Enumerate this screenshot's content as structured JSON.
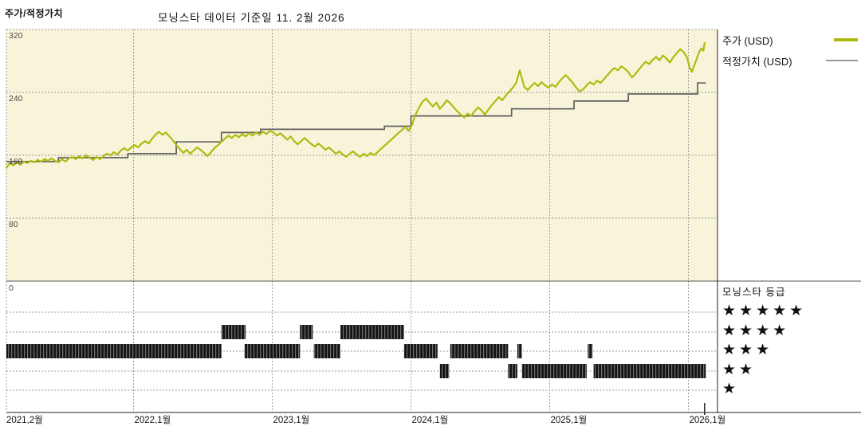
{
  "header": {
    "title": "주가/적정가치"
  },
  "chart_title": "모닝스타 데이터 기준일 11. 2월 2026",
  "legend": {
    "items": [
      {
        "label": "주가 (USD)",
        "color": "#afba10"
      },
      {
        "label": "적정가치 (USD)",
        "color": "#9a9a9a"
      }
    ]
  },
  "rating_panel": {
    "title": "모닝스타 등급",
    "star_glyph": "★",
    "levels": [
      5,
      4,
      3,
      2,
      1
    ]
  },
  "colors": {
    "plot_bg": "#f8f4d9",
    "grid": "#9a9a9a",
    "axis": "#222222",
    "divider": "#555555",
    "price_line": "#afba10",
    "fair_value_line": "#5f5f5f",
    "rating_bar_dark": "#141414",
    "rating_bar_mid": "#6e6e6e"
  },
  "chart_data": {
    "type": "line",
    "title": "모닝스타 데이터 기준일 11. 2월 2026",
    "x_axis": {
      "labels": [
        "2021,2월",
        "2022,1월",
        "2023,1월",
        "2024,1월",
        "2025,1월",
        "2026,1월"
      ],
      "tick_months": [
        0,
        11,
        23,
        35,
        47,
        59
      ],
      "months_origin": "2021-02",
      "data_end_month": 60.4
    },
    "y_axis": {
      "ticks": [
        320,
        240,
        160,
        80,
        0
      ],
      "range": [
        0,
        320
      ],
      "unit": "USD"
    },
    "series": [
      {
        "name": "주가 (USD)",
        "type": "line",
        "color": "#afba10",
        "points": [
          [
            0,
            144
          ],
          [
            0.3,
            150
          ],
          [
            0.6,
            147
          ],
          [
            0.9,
            151
          ],
          [
            1.2,
            148
          ],
          [
            1.5,
            152
          ],
          [
            1.8,
            150
          ],
          [
            2.1,
            153
          ],
          [
            2.4,
            151
          ],
          [
            2.7,
            154
          ],
          [
            3,
            152
          ],
          [
            3.3,
            155
          ],
          [
            3.6,
            153
          ],
          [
            3.9,
            156
          ],
          [
            4.2,
            153
          ],
          [
            4.5,
            151
          ],
          [
            4.8,
            155
          ],
          [
            5.1,
            152
          ],
          [
            5.4,
            156
          ],
          [
            5.7,
            158
          ],
          [
            6,
            155
          ],
          [
            6.3,
            159
          ],
          [
            6.6,
            156
          ],
          [
            6.9,
            160
          ],
          [
            7.2,
            157
          ],
          [
            7.5,
            154
          ],
          [
            7.8,
            158
          ],
          [
            8.1,
            155
          ],
          [
            8.4,
            159
          ],
          [
            8.7,
            162
          ],
          [
            9,
            160
          ],
          [
            9.3,
            164
          ],
          [
            9.6,
            161
          ],
          [
            9.9,
            166
          ],
          [
            10.2,
            169
          ],
          [
            10.5,
            166
          ],
          [
            10.8,
            170
          ],
          [
            11.1,
            173
          ],
          [
            11.4,
            170
          ],
          [
            11.7,
            175
          ],
          [
            12,
            178
          ],
          [
            12.3,
            175
          ],
          [
            12.6,
            181
          ],
          [
            12.9,
            186
          ],
          [
            13.2,
            190
          ],
          [
            13.5,
            186
          ],
          [
            13.8,
            189
          ],
          [
            14.1,
            184
          ],
          [
            14.4,
            179
          ],
          [
            14.7,
            173
          ],
          [
            15,
            168
          ],
          [
            15.3,
            163
          ],
          [
            15.6,
            167
          ],
          [
            15.9,
            162
          ],
          [
            16.2,
            166
          ],
          [
            16.5,
            170
          ],
          [
            16.8,
            167
          ],
          [
            17.1,
            163
          ],
          [
            17.4,
            159
          ],
          [
            17.7,
            164
          ],
          [
            18,
            169
          ],
          [
            18.3,
            173
          ],
          [
            18.6,
            177
          ],
          [
            18.9,
            181
          ],
          [
            19.2,
            185
          ],
          [
            19.5,
            182
          ],
          [
            19.8,
            186
          ],
          [
            20.1,
            183
          ],
          [
            20.4,
            187
          ],
          [
            20.7,
            184
          ],
          [
            21,
            188
          ],
          [
            21.3,
            185
          ],
          [
            21.6,
            189
          ],
          [
            21.9,
            186
          ],
          [
            22.2,
            190
          ],
          [
            22.5,
            187
          ],
          [
            22.8,
            191
          ],
          [
            23.1,
            189
          ],
          [
            23.4,
            185
          ],
          [
            23.7,
            188
          ],
          [
            24,
            184
          ],
          [
            24.3,
            180
          ],
          [
            24.6,
            184
          ],
          [
            24.9,
            178
          ],
          [
            25.2,
            174
          ],
          [
            25.5,
            178
          ],
          [
            25.8,
            182
          ],
          [
            26.1,
            178
          ],
          [
            26.4,
            174
          ],
          [
            26.7,
            171
          ],
          [
            27,
            175
          ],
          [
            27.3,
            171
          ],
          [
            27.6,
            167
          ],
          [
            27.9,
            170
          ],
          [
            28.2,
            166
          ],
          [
            28.5,
            162
          ],
          [
            28.8,
            165
          ],
          [
            29.1,
            161
          ],
          [
            29.4,
            158
          ],
          [
            29.7,
            162
          ],
          [
            30,
            165
          ],
          [
            30.3,
            161
          ],
          [
            30.6,
            158
          ],
          [
            30.9,
            162
          ],
          [
            31.2,
            159
          ],
          [
            31.5,
            163
          ],
          [
            31.8,
            160
          ],
          [
            32.1,
            164
          ],
          [
            32.4,
            168
          ],
          [
            32.7,
            172
          ],
          [
            33,
            176
          ],
          [
            33.3,
            180
          ],
          [
            33.6,
            184
          ],
          [
            33.9,
            188
          ],
          [
            34.2,
            192
          ],
          [
            34.5,
            196
          ],
          [
            34.8,
            191
          ],
          [
            35.1,
            199
          ],
          [
            35.4,
            212
          ],
          [
            35.7,
            221
          ],
          [
            36,
            228
          ],
          [
            36.3,
            232
          ],
          [
            36.6,
            227
          ],
          [
            36.9,
            222
          ],
          [
            37.2,
            227
          ],
          [
            37.5,
            219
          ],
          [
            37.8,
            224
          ],
          [
            38.1,
            230
          ],
          [
            38.4,
            226
          ],
          [
            38.7,
            221
          ],
          [
            39,
            216
          ],
          [
            39.3,
            212
          ],
          [
            39.6,
            208
          ],
          [
            39.9,
            213
          ],
          [
            40.2,
            210
          ],
          [
            40.5,
            216
          ],
          [
            40.8,
            221
          ],
          [
            41.1,
            217
          ],
          [
            41.4,
            212
          ],
          [
            41.7,
            218
          ],
          [
            42,
            224
          ],
          [
            42.3,
            229
          ],
          [
            42.6,
            234
          ],
          [
            42.9,
            230
          ],
          [
            43.2,
            236
          ],
          [
            43.5,
            241
          ],
          [
            43.8,
            246
          ],
          [
            44.1,
            252
          ],
          [
            44.4,
            268
          ],
          [
            44.6,
            258
          ],
          [
            44.8,
            247
          ],
          [
            45.1,
            243
          ],
          [
            45.4,
            248
          ],
          [
            45.7,
            252
          ],
          [
            46,
            248
          ],
          [
            46.3,
            253
          ],
          [
            46.6,
            249
          ],
          [
            46.9,
            246
          ],
          [
            47.2,
            250
          ],
          [
            47.5,
            247
          ],
          [
            47.8,
            253
          ],
          [
            48.1,
            258
          ],
          [
            48.4,
            262
          ],
          [
            48.7,
            257
          ],
          [
            49,
            252
          ],
          [
            49.3,
            246
          ],
          [
            49.6,
            241
          ],
          [
            49.9,
            244
          ],
          [
            50.2,
            249
          ],
          [
            50.5,
            253
          ],
          [
            50.8,
            250
          ],
          [
            51.1,
            255
          ],
          [
            51.4,
            252
          ],
          [
            51.7,
            257
          ],
          [
            52,
            262
          ],
          [
            52.3,
            267
          ],
          [
            52.6,
            271
          ],
          [
            52.9,
            268
          ],
          [
            53.2,
            273
          ],
          [
            53.5,
            270
          ],
          [
            53.8,
            266
          ],
          [
            54.1,
            259
          ],
          [
            54.4,
            263
          ],
          [
            54.7,
            269
          ],
          [
            55,
            274
          ],
          [
            55.3,
            279
          ],
          [
            55.6,
            276
          ],
          [
            55.9,
            281
          ],
          [
            56.2,
            285
          ],
          [
            56.5,
            281
          ],
          [
            56.8,
            287
          ],
          [
            57.1,
            283
          ],
          [
            57.4,
            278
          ],
          [
            57.7,
            285
          ],
          [
            58,
            290
          ],
          [
            58.3,
            295
          ],
          [
            58.6,
            291
          ],
          [
            58.9,
            284
          ],
          [
            59.1,
            272
          ],
          [
            59.3,
            266
          ],
          [
            59.5,
            274
          ],
          [
            59.7,
            282
          ],
          [
            59.9,
            290
          ],
          [
            60.1,
            296
          ],
          [
            60.3,
            293
          ],
          [
            60.4,
            303
          ]
        ]
      },
      {
        "name": "적정가치 (USD)",
        "type": "step",
        "color": "#5f5f5f",
        "points": [
          [
            0,
            152
          ],
          [
            4.5,
            157
          ],
          [
            10.5,
            162
          ],
          [
            14.7,
            177
          ],
          [
            18.6,
            189
          ],
          [
            22,
            193
          ],
          [
            32.7,
            197
          ],
          [
            35,
            210
          ],
          [
            43.7,
            219
          ],
          [
            49.1,
            229
          ],
          [
            53.8,
            238
          ],
          [
            59.8,
            252
          ],
          [
            60.5,
            252
          ]
        ]
      }
    ],
    "ratings": {
      "name": "모닝스타 등급",
      "segments": [
        {
          "stars": 3,
          "start_month": 0,
          "end_month": 18.6
        },
        {
          "stars": 4,
          "start_month": 18.6,
          "end_month": 20.7
        },
        {
          "stars": 3,
          "start_month": 20.6,
          "end_month": 25.4
        },
        {
          "stars": 4,
          "start_month": 25.4,
          "end_month": 26.5
        },
        {
          "stars": 3,
          "start_month": 26.6,
          "end_month": 28.9
        },
        {
          "stars": 4,
          "start_month": 28.9,
          "end_month": 34.4
        },
        {
          "stars": 3,
          "start_month": 34.4,
          "end_month": 37.3
        },
        {
          "stars": 2,
          "start_month": 37.5,
          "end_month": 38.3
        },
        {
          "stars": 3,
          "start_month": 38.4,
          "end_month": 43.4
        },
        {
          "stars": 2,
          "start_month": 43.4,
          "end_month": 44.2
        },
        {
          "stars": 3,
          "start_month": 44.2,
          "end_month": 44.6
        },
        {
          "stars": 2,
          "start_month": 44.6,
          "end_month": 50.2
        },
        {
          "stars": 3,
          "start_month": 50.3,
          "end_month": 50.7
        },
        {
          "stars": 2,
          "start_month": 50.8,
          "end_month": 60.5
        }
      ]
    },
    "layout": {
      "grid": "dashed",
      "legend_position": "top-right",
      "price_panel_bg": "#f8f4d9",
      "rating_panel_bg": "#ffffff"
    }
  }
}
